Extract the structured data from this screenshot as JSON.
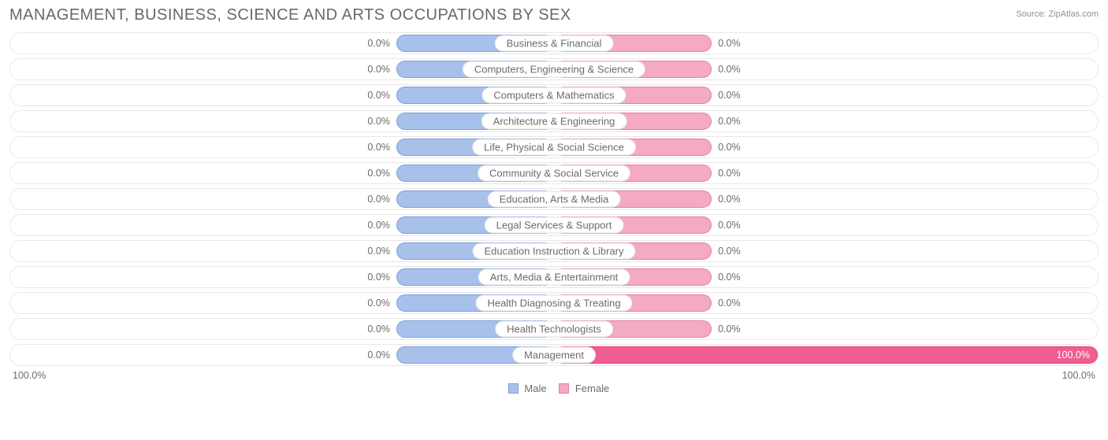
{
  "header": {
    "title": "MANAGEMENT, BUSINESS, SCIENCE AND ARTS OCCUPATIONS BY SEX",
    "source": "Source: ZipAtlas.com"
  },
  "chart": {
    "type": "diverging-bar",
    "axis_left": "100.0%",
    "axis_right": "100.0%",
    "colors": {
      "male_fill": "#a7c1eb",
      "male_border": "#7e9fd6",
      "female_fill": "#f4aac2",
      "female_border": "#e67fa3",
      "female_full_fill": "#ef5e92",
      "female_full_border": "#e23d78",
      "track_border": "#e8e8e8",
      "text": "#6b6b6b",
      "label_border": "#e2e2e2"
    },
    "default_bar_pct_width": 29,
    "rows": [
      {
        "label": "Business & Financial",
        "male_pct": 0.0,
        "female_pct": 0.0,
        "male_text": "0.0%",
        "female_text": "0.0%"
      },
      {
        "label": "Computers, Engineering & Science",
        "male_pct": 0.0,
        "female_pct": 0.0,
        "male_text": "0.0%",
        "female_text": "0.0%"
      },
      {
        "label": "Computers & Mathematics",
        "male_pct": 0.0,
        "female_pct": 0.0,
        "male_text": "0.0%",
        "female_text": "0.0%"
      },
      {
        "label": "Architecture & Engineering",
        "male_pct": 0.0,
        "female_pct": 0.0,
        "male_text": "0.0%",
        "female_text": "0.0%"
      },
      {
        "label": "Life, Physical & Social Science",
        "male_pct": 0.0,
        "female_pct": 0.0,
        "male_text": "0.0%",
        "female_text": "0.0%"
      },
      {
        "label": "Community & Social Service",
        "male_pct": 0.0,
        "female_pct": 0.0,
        "male_text": "0.0%",
        "female_text": "0.0%"
      },
      {
        "label": "Education, Arts & Media",
        "male_pct": 0.0,
        "female_pct": 0.0,
        "male_text": "0.0%",
        "female_text": "0.0%"
      },
      {
        "label": "Legal Services & Support",
        "male_pct": 0.0,
        "female_pct": 0.0,
        "male_text": "0.0%",
        "female_text": "0.0%"
      },
      {
        "label": "Education Instruction & Library",
        "male_pct": 0.0,
        "female_pct": 0.0,
        "male_text": "0.0%",
        "female_text": "0.0%"
      },
      {
        "label": "Arts, Media & Entertainment",
        "male_pct": 0.0,
        "female_pct": 0.0,
        "male_text": "0.0%",
        "female_text": "0.0%"
      },
      {
        "label": "Health Diagnosing & Treating",
        "male_pct": 0.0,
        "female_pct": 0.0,
        "male_text": "0.0%",
        "female_text": "0.0%"
      },
      {
        "label": "Health Technologists",
        "male_pct": 0.0,
        "female_pct": 0.0,
        "male_text": "0.0%",
        "female_text": "0.0%"
      },
      {
        "label": "Management",
        "male_pct": 0.0,
        "female_pct": 100.0,
        "male_text": "0.0%",
        "female_text": "100.0%"
      }
    ],
    "legend": {
      "male": "Male",
      "female": "Female"
    }
  }
}
